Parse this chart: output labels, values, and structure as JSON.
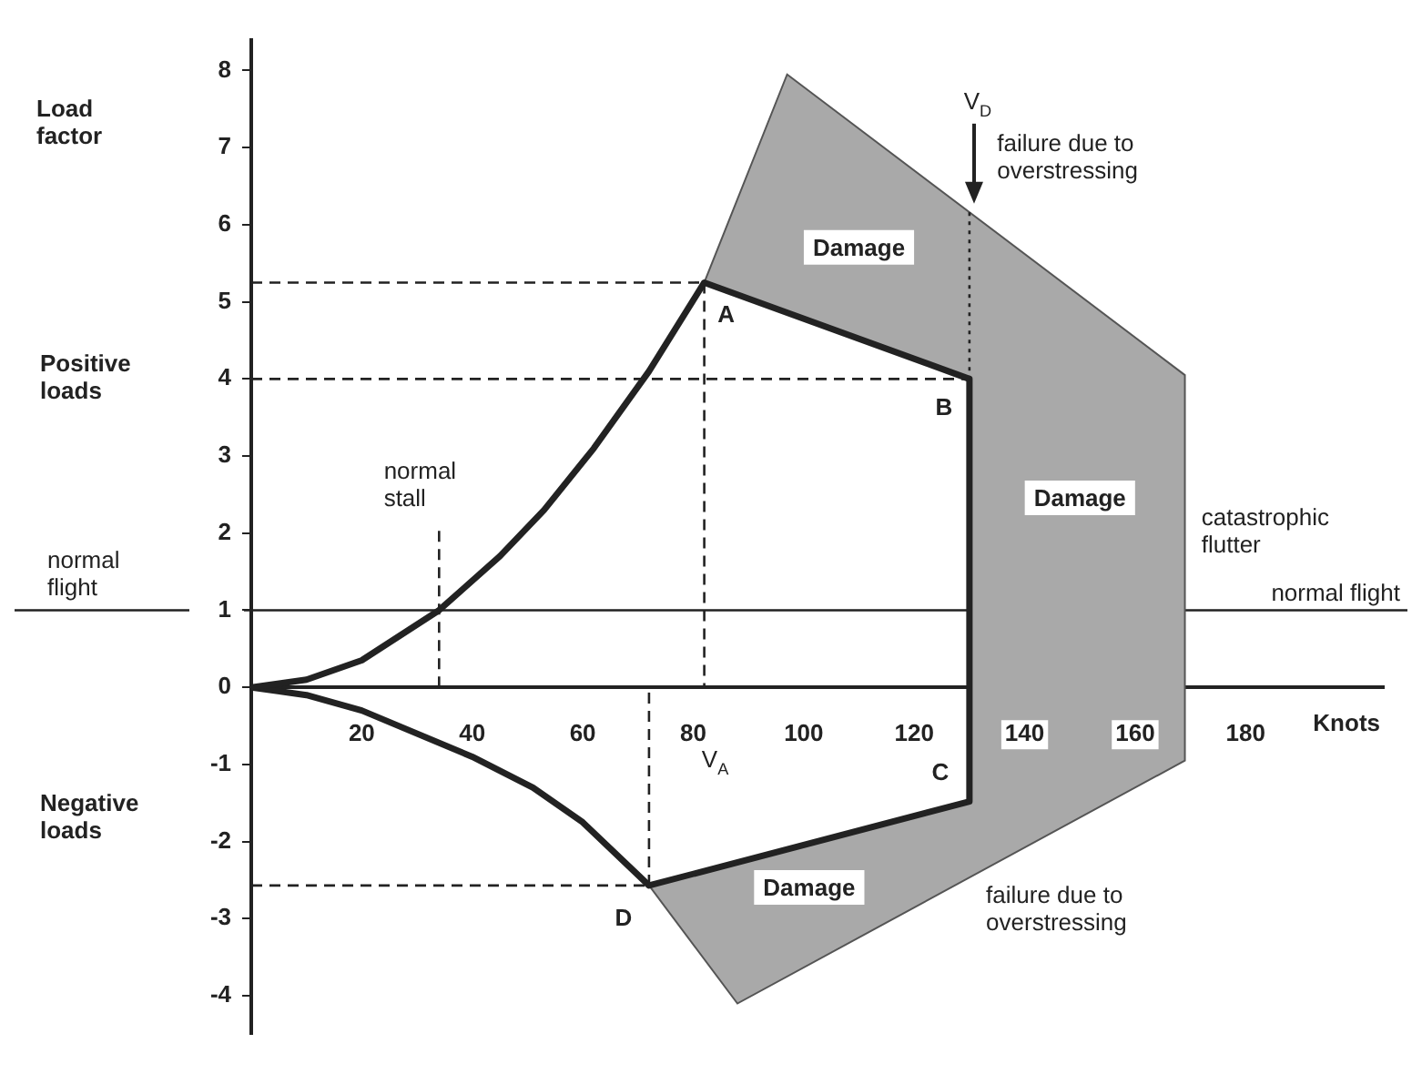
{
  "chart_data": {
    "type": "line",
    "xlabel": "Knots",
    "xlim": [
      0,
      205
    ],
    "ylim": [
      -4.5,
      8.4
    ],
    "xticks": [
      20,
      40,
      60,
      80,
      100,
      120,
      140,
      160,
      180
    ],
    "yticks": [
      -4,
      -3,
      -2,
      -1,
      0,
      1,
      2,
      3,
      4,
      5,
      6,
      7,
      8
    ],
    "grid": false,
    "legend": false,
    "marker": "none",
    "series": [
      {
        "type": "area",
        "color": "#a9a9a9",
        "x": [
          82,
          97,
          169,
          169,
          88,
          72,
          130,
          130,
          82
        ],
        "values": [
          5.25,
          7.95,
          4.05,
          -0.95,
          -4.1,
          -2.57,
          -1.48,
          4,
          5.25
        ]
      },
      {
        "color": "#222222",
        "x": [
          0,
          10,
          20,
          34,
          45,
          53,
          62,
          72,
          82,
          130
        ],
        "values": [
          0,
          0.1,
          0.35,
          1,
          1.7,
          2.3,
          3.1,
          4.1,
          5.25,
          4
        ]
      },
      {
        "color": "#222222",
        "x": [
          130,
          130
        ],
        "values": [
          4,
          -1.48
        ]
      },
      {
        "color": "#222222",
        "x": [
          0,
          10,
          20,
          40,
          51,
          60,
          72,
          130
        ],
        "values": [
          0,
          -0.1,
          -0.3,
          -0.9,
          -1.3,
          -1.75,
          -2.57,
          -1.48
        ]
      },
      {
        "type": "line",
        "color": "#222222",
        "line_style": "dashed",
        "x": [
          0,
          82
        ],
        "values": [
          5.25,
          5.25
        ]
      },
      {
        "type": "line",
        "color": "#222222",
        "line_style": "dashed",
        "x": [
          0,
          130
        ],
        "values": [
          4,
          4
        ]
      },
      {
        "type": "line",
        "color": "#222222",
        "line_style": "dashed",
        "x": [
          0,
          72
        ],
        "values": [
          -2.57,
          -2.57
        ]
      },
      {
        "type": "line",
        "color": "#222222",
        "line_style": "dashed",
        "x": [
          82,
          82
        ],
        "values": [
          5.25,
          0
        ]
      },
      {
        "type": "line",
        "color": "#222222",
        "line_style": "dashed",
        "x": [
          72,
          72
        ],
        "values": [
          -2.57,
          0
        ]
      },
      {
        "type": "line",
        "color": "#222222",
        "line_style": "dashed",
        "x": [
          34,
          34
        ],
        "values": [
          0,
          2.1
        ]
      },
      {
        "type": "line",
        "color": "#222222",
        "line_style": "dotted",
        "x": [
          130,
          130
        ],
        "values": [
          6.16,
          4
        ]
      }
    ],
    "ref_lines": [
      {
        "axis": "y",
        "value": 1,
        "label": "normal flight",
        "color": "#222222"
      }
    ],
    "annotations": [
      {
        "text": "A",
        "x": 82,
        "y": 5.25
      },
      {
        "text": "B",
        "x": 130,
        "y": 4
      },
      {
        "text": "C",
        "x": 130,
        "y": -1.48
      },
      {
        "text": "D",
        "x": 72,
        "y": -2.57
      },
      {
        "text": "V$_{A}$",
        "x": 82,
        "y": 0
      },
      "V$_{D}$",
      "Load factor",
      "Positive loads",
      "Negative loads",
      "normal flight",
      "Damage",
      "Damage",
      "Damage",
      "normal stall",
      "failure due to overstressing",
      "failure due to overstressing",
      "catastrophic flutter"
    ]
  }
}
